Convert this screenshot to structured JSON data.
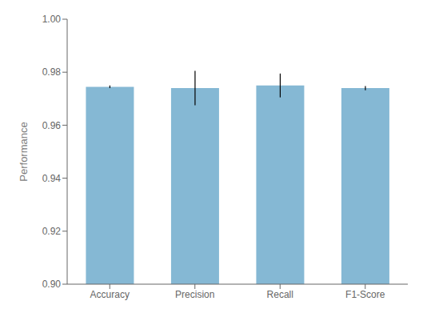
{
  "chart_data": {
    "type": "bar",
    "categories": [
      "Accuracy",
      "Precision",
      "Recall",
      "F1-Score"
    ],
    "values": [
      0.9745,
      0.974,
      0.975,
      0.974
    ],
    "errors": [
      0.0005,
      0.0065,
      0.0045,
      0.0008
    ],
    "color": "#85b8d4",
    "ylabel": "Performance",
    "ylim": [
      0.9,
      1.0
    ],
    "yticks": [
      {
        "value": 0.9,
        "label": "0.90"
      },
      0.92,
      0.94,
      0.96,
      0.98,
      {
        "value": 1,
        "label": "1.00"
      }
    ],
    "grid": false
  }
}
